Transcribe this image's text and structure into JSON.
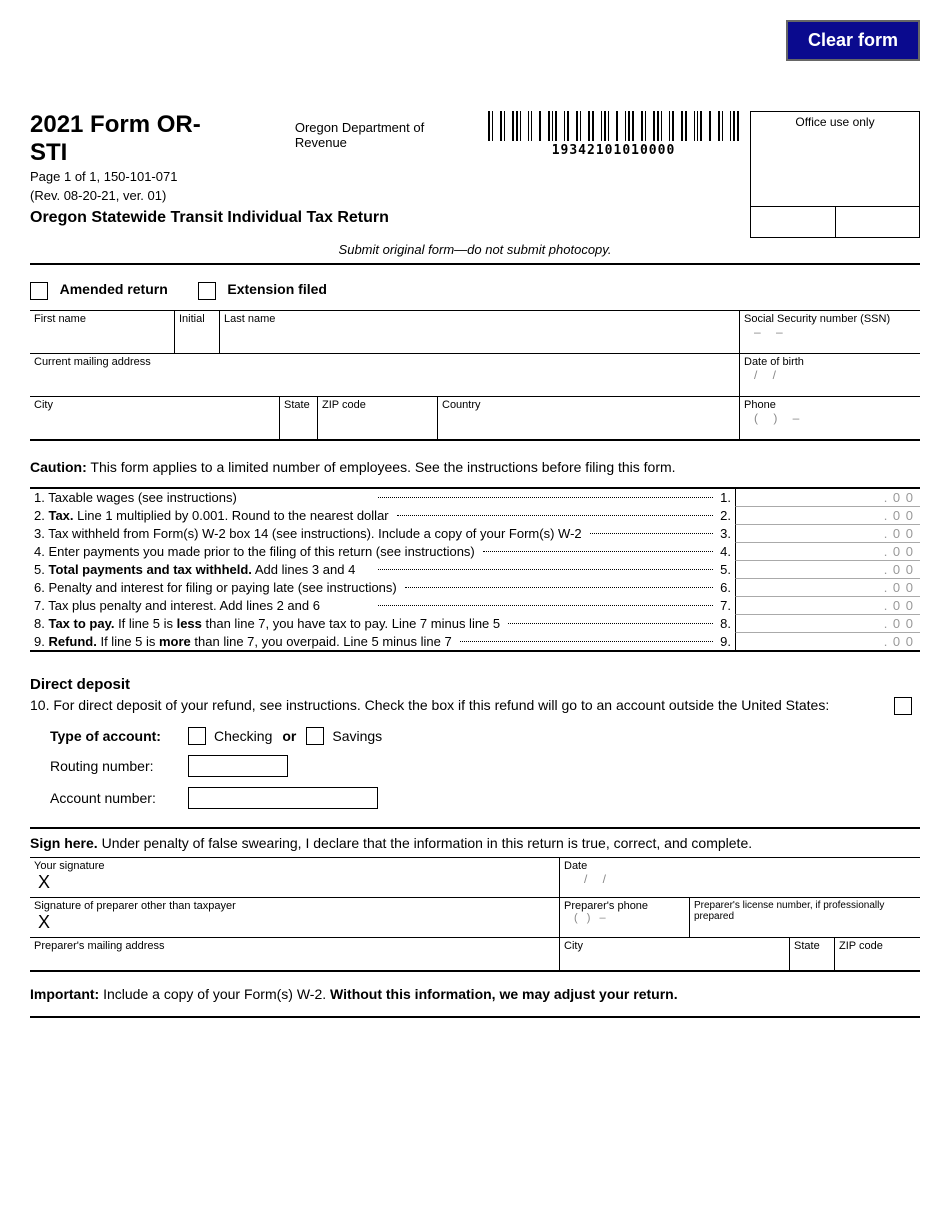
{
  "buttons": {
    "clear": "Clear form"
  },
  "header": {
    "title": "2021 Form OR-STI",
    "page_line": "Page 1 of 1, 150-101-071",
    "dept": "Oregon Department of Revenue",
    "revision": "(Rev. 08-20-21, ver. 01)",
    "subtitle": "Oregon Statewide Transit Individual Tax Return",
    "barcode_number": "19342101010000",
    "office_use": "Office use only",
    "submit_note": "Submit original form—do not submit photocopy."
  },
  "checkboxes": {
    "amended": "Amended return",
    "extension": "Extension filed"
  },
  "fields": {
    "first_name": "First name",
    "initial": "Initial",
    "last_name": "Last name",
    "ssn": "Social Security number (SSN)",
    "ssn_fmt": "–      –",
    "address": "Current mailing address",
    "dob": "Date of birth",
    "dob_fmt": "/       /",
    "city": "City",
    "state": "State",
    "zip": "ZIP code",
    "country": "Country",
    "phone": "Phone",
    "phone_fmt": "(        )          –"
  },
  "caution_bold": "Caution:",
  "caution_text": " This form applies to a limited number of employees. See the instructions before filing this form.",
  "lines": [
    {
      "n": "1",
      "text": "1. Taxable wages (see instructions)",
      "amount": ". 0 0"
    },
    {
      "n": "2",
      "text_pre": "2. ",
      "bold": "Tax.",
      "text_post": " Line 1 multiplied by 0.001. Round to the nearest dollar",
      "amount": ". 0 0"
    },
    {
      "n": "3",
      "text": "3. Tax withheld from Form(s) W-2 box 14 (see instructions). Include a copy of your Form(s) W-2",
      "amount": ". 0 0"
    },
    {
      "n": "4",
      "text": "4. Enter payments you made prior to the filing of this return (see instructions)",
      "amount": ". 0 0"
    },
    {
      "n": "5",
      "text_pre": "5. ",
      "bold": "Total payments and tax withheld.",
      "text_post": " Add lines 3 and 4",
      "amount": ". 0 0"
    },
    {
      "n": "6",
      "text": "6. Penalty and interest for filing or paying late (see instructions)",
      "amount": ". 0 0"
    },
    {
      "n": "7",
      "text": "7. Tax plus penalty and interest. Add lines 2 and 6",
      "amount": ". 0 0"
    },
    {
      "n": "8",
      "text_pre": "8. ",
      "bold": "Tax to pay.",
      "text_mid": " If line 5 is ",
      "bold2": "less",
      "text_post": " than line 7, you have tax to pay. Line 7 minus line 5",
      "amount": ". 0 0"
    },
    {
      "n": "9",
      "text_pre": "9. ",
      "bold": "Refund.",
      "text_mid": " If line 5 is ",
      "bold2": "more",
      "text_post": " than line 7, you overpaid. Line 5 minus line 7",
      "amount": ". 0 0"
    }
  ],
  "dd": {
    "header": "Direct deposit",
    "text": "10. For direct deposit of your refund, see instructions. Check the box if this refund will go to an account outside the United States:",
    "type_label": "Type of account:",
    "checking": "Checking",
    "or": "or",
    "savings": "Savings",
    "routing": "Routing number:",
    "account": "Account number:"
  },
  "sign": {
    "intro_bold": "Sign here.",
    "intro_text": " Under penalty of false swearing, I declare that the information in this return is true, correct, and complete.",
    "your_sig": "Your signature",
    "date": "Date",
    "date_fmt": "/       /",
    "prep_sig": "Signature of preparer other than taxpayer",
    "prep_phone": "Preparer's phone",
    "prep_phone_fmt": "(        )          –",
    "prep_license": "Preparer's license number, if professionally prepared",
    "prep_addr": "Preparer's mailing address",
    "city": "City",
    "state": "State",
    "zip": "ZIP code"
  },
  "important_bold1": "Important:",
  "important_mid": " Include a copy of your Form(s) W-2. ",
  "important_bold2": "Without this information, we may adjust your return."
}
